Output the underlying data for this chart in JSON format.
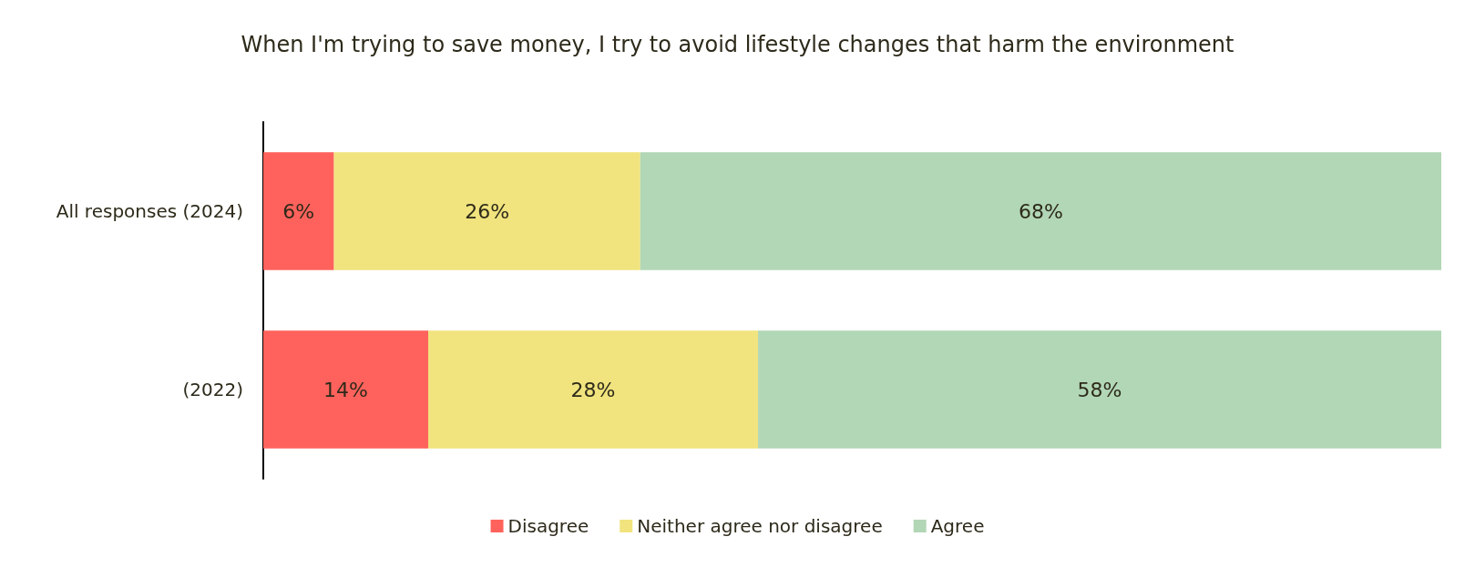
{
  "chart_data": {
    "type": "bar",
    "orientation": "horizontal",
    "stacked": true,
    "title": "When I'm trying to save money, I try to avoid lifestyle changes that harm the environment",
    "categories": [
      "All responses (2024)",
      "(2022)"
    ],
    "series": [
      {
        "name": "Disagree",
        "color": "#ff625c",
        "values": [
          6,
          14
        ],
        "value_labels": [
          "6%",
          "14%"
        ]
      },
      {
        "name": "Neither agree nor disagree",
        "color": "#f1e37e",
        "values": [
          26,
          28
        ],
        "value_labels": [
          "26%",
          "28%"
        ]
      },
      {
        "name": "Agree",
        "color": "#b2d7b6",
        "values": [
          68,
          58
        ],
        "value_labels": [
          "68%",
          "58%"
        ]
      }
    ],
    "legend": "bottom"
  }
}
